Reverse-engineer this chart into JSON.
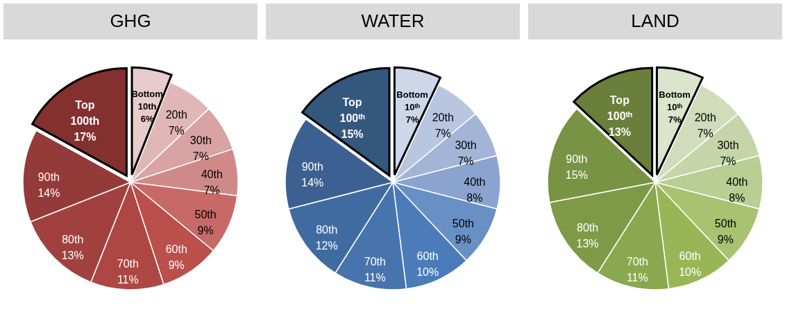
{
  "chart_data": [
    {
      "type": "pie",
      "title": "GHG",
      "categories": [
        "Bottom 10th",
        "20th",
        "30th",
        "40th",
        "50th",
        "60th",
        "70th",
        "80th",
        "90th",
        "Top 100th"
      ],
      "values": [
        6,
        7,
        7,
        7,
        9,
        9,
        11,
        13,
        14,
        17
      ],
      "value_labels": [
        "6%",
        "7%",
        "7%",
        "7%",
        "9%",
        "9%",
        "11%",
        "13%",
        "14%",
        "17%"
      ],
      "colors": [
        "#e8cbcb",
        "#e0b7b6",
        "#d8a3a2",
        "#cf8a88",
        "#c66967",
        "#bb4f4c",
        "#ad4744",
        "#a1413f",
        "#943a39",
        "#83302f"
      ]
    },
    {
      "type": "pie",
      "title": "WATER",
      "categories": [
        "Bottom 10ᵗʰ",
        "20th",
        "30th",
        "40th",
        "50th",
        "60th",
        "70th",
        "80th",
        "90th",
        "Top 100ᵗʰ"
      ],
      "values": [
        7,
        7,
        7,
        8,
        9,
        10,
        11,
        12,
        14,
        15
      ],
      "value_labels": [
        "7%",
        "7%",
        "7%",
        "8%",
        "9%",
        "10%",
        "11%",
        "12%",
        "14%",
        "15%"
      ],
      "colors": [
        "#cdd7e9",
        "#b9c6e0",
        "#a3b5d7",
        "#8aa4cf",
        "#6890c5",
        "#4b7cb9",
        "#4774ac",
        "#406ba0",
        "#3b6091",
        "#34577e"
      ]
    },
    {
      "type": "pie",
      "title": "LAND",
      "categories": [
        "Bottom 10ᵗʰ",
        "20th",
        "30th",
        "40th",
        "50th",
        "60th",
        "70th",
        "80th",
        "90th",
        "Top 100ᵗʰ"
      ],
      "values": [
        7,
        7,
        7,
        8,
        9,
        10,
        11,
        13,
        15,
        13
      ],
      "value_labels": [
        "7%",
        "7%",
        "7%",
        "8%",
        "9%",
        "10%",
        "11%",
        "13%",
        "15%",
        "13%"
      ],
      "colors": [
        "#dbe5cc",
        "#d0dcba",
        "#c5d5a9",
        "#b8ce93",
        "#a8c272",
        "#98b655",
        "#8aa84e",
        "#7e9a47",
        "#779343",
        "#6a7f3a"
      ]
    }
  ]
}
